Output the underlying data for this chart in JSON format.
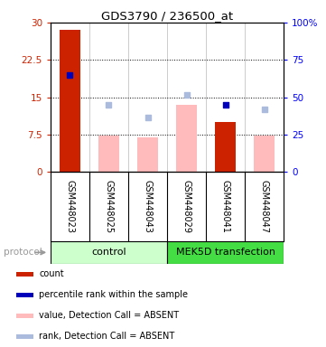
{
  "title": "GDS3790 / 236500_at",
  "samples": [
    "GSM448023",
    "GSM448025",
    "GSM448043",
    "GSM448029",
    "GSM448041",
    "GSM448047"
  ],
  "bar_values_red": [
    28.5,
    null,
    null,
    null,
    10.0,
    null
  ],
  "bar_values_pink": [
    null,
    7.2,
    7.0,
    13.5,
    null,
    7.2
  ],
  "dot_blue_dark": [
    19.5,
    null,
    null,
    null,
    13.5,
    null
  ],
  "dot_blue_light": [
    null,
    13.5,
    11.0,
    15.5,
    null,
    12.5
  ],
  "ylim_left": [
    0,
    30
  ],
  "yticks_left": [
    0,
    7.5,
    15,
    22.5,
    30
  ],
  "ytick_labels_left": [
    "0",
    "7.5",
    "15",
    "22.5",
    "30"
  ],
  "yticks_right": [
    0,
    25,
    50,
    75,
    100
  ],
  "ytick_labels_right": [
    "0",
    "25",
    "50",
    "75",
    "100%"
  ],
  "bar_width": 0.55,
  "color_red": "#cc2200",
  "color_pink": "#ffbbbb",
  "color_blue_dark": "#0000bb",
  "color_blue_light": "#aabbdd",
  "color_control_bg": "#ccffcc",
  "color_mek_bg": "#44dd44",
  "sample_box_color": "#cccccc",
  "background_color": "#ffffff"
}
